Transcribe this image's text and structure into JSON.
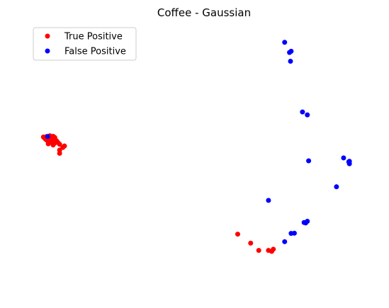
{
  "chart_data": {
    "type": "scatter",
    "title": "Coffee - Gaussian",
    "xlabel": "",
    "ylabel": "",
    "axes_visible": false,
    "grid": false,
    "xlim": [
      0,
      100
    ],
    "ylim": [
      0,
      100
    ],
    "legend_position": "top-left",
    "series": [
      {
        "name": "True Positive",
        "color": "#ff0000",
        "points": [
          [
            0.5,
            57
          ],
          [
            1.5,
            57.2
          ],
          [
            2.5,
            57.5
          ],
          [
            3.5,
            57.3
          ],
          [
            4,
            56.8
          ],
          [
            1.5,
            55.7
          ],
          [
            2.5,
            56.0
          ],
          [
            3.5,
            56.3
          ],
          [
            4.5,
            55.5
          ],
          [
            1,
            56.3
          ],
          [
            3,
            54.8
          ],
          [
            4,
            54.5
          ],
          [
            5,
            54.7
          ],
          [
            2,
            54.2
          ],
          [
            3.5,
            53.7
          ],
          [
            5.5,
            54.0
          ],
          [
            6.5,
            52.7
          ],
          [
            7,
            53.3
          ],
          [
            5.5,
            51.6
          ],
          [
            5.5,
            50.3
          ],
          [
            60.5,
            17
          ],
          [
            64.5,
            13.3
          ],
          [
            67,
            10.3
          ],
          [
            70,
            10.3
          ],
          [
            71,
            9.9
          ],
          [
            71.5,
            10.8
          ]
        ]
      },
      {
        "name": "False Positive",
        "color": "#0000ff",
        "points": [
          [
            1.8,
            57.2
          ],
          [
            75,
            96
          ],
          [
            76.5,
            91.8
          ],
          [
            77,
            92.3
          ],
          [
            76.8,
            88.2
          ],
          [
            80.5,
            67.3
          ],
          [
            82,
            66.1
          ],
          [
            93.2,
            48.4
          ],
          [
            82.4,
            47.2
          ],
          [
            94.8,
            46.8
          ],
          [
            95,
            47.0
          ],
          [
            95,
            46.0
          ],
          [
            91,
            36.5
          ],
          [
            70,
            30.9
          ],
          [
            81,
            21.8
          ],
          [
            81.5,
            21.6
          ],
          [
            82,
            22.3
          ],
          [
            77,
            17.3
          ],
          [
            78,
            17.4
          ],
          [
            75,
            13.9
          ]
        ]
      }
    ]
  }
}
